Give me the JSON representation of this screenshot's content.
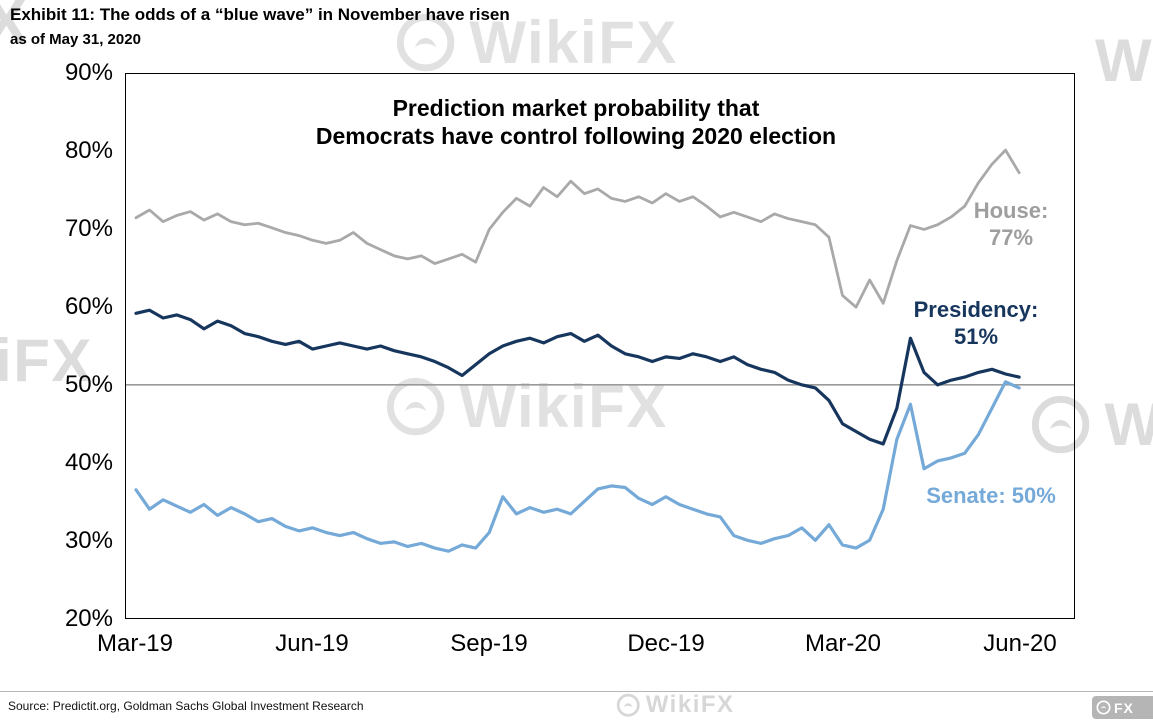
{
  "exhibit": {
    "title": "Exhibit 11: The odds of a “blue wave” in November have risen",
    "subtitle": "as of May 31, 2020",
    "source": "Source: Predictit.org, Goldman Sachs Global Investment Research"
  },
  "watermark": {
    "text": "WikiFX",
    "fragment_w": "W",
    "fragment_x": "X",
    "fragment_fx": "FX"
  },
  "colors": {
    "house": "#a9a9a9",
    "presidency": "#17365d",
    "senate": "#74a9d8",
    "fifty_line": "#9a9a9a",
    "frame": "#000000"
  },
  "chart_data": {
    "type": "line",
    "title_line1": "Prediction market probability that",
    "title_line2": "Democrats have control following  2020 election",
    "x_tick_labels": [
      "Mar-19",
      "Jun-19",
      "Sep-19",
      "Dec-19",
      "Mar-20",
      "Jun-20"
    ],
    "y_tick_labels": [
      "90%",
      "80%",
      "70%",
      "60%",
      "50%",
      "40%",
      "30%",
      "20%"
    ],
    "ylim": [
      20,
      90
    ],
    "x_range_months": [
      0,
      15
    ],
    "reference_line_y": 50,
    "grid": "off",
    "legend_position": "inline-annotations",
    "annotations": {
      "house_line1": "House:",
      "house_line2": "77%",
      "presidency_line1": "Presidency:",
      "presidency_line2": "51%",
      "senate": "Senate: 50%"
    },
    "series": [
      {
        "name": "House",
        "final_value": 77,
        "color": "#a9a9a9",
        "width": 2.8,
        "values": [
          71.5,
          72.5,
          71.0,
          71.8,
          72.3,
          71.2,
          72.0,
          71.0,
          70.6,
          70.8,
          70.2,
          69.6,
          69.2,
          68.6,
          68.2,
          68.6,
          69.6,
          68.2,
          67.4,
          66.6,
          66.2,
          66.6,
          65.6,
          66.2,
          66.8,
          65.8,
          70.0,
          72.2,
          74.0,
          73.0,
          75.4,
          74.2,
          76.2,
          74.6,
          75.2,
          74.0,
          73.6,
          74.2,
          73.4,
          74.6,
          73.6,
          74.2,
          73.0,
          71.6,
          72.2,
          71.6,
          71.0,
          72.0,
          71.4,
          71.0,
          70.6,
          69.0,
          61.5,
          60.0,
          63.5,
          60.5,
          66.0,
          70.5,
          70.0,
          70.6,
          71.6,
          73.0,
          76.0,
          78.4,
          80.2,
          77.3
        ]
      },
      {
        "name": "Senate",
        "final_value": 50,
        "color": "#74a9d8",
        "width": 3.2,
        "values": [
          36.5,
          34.0,
          35.2,
          34.4,
          33.6,
          34.6,
          33.2,
          34.2,
          33.4,
          32.4,
          32.8,
          31.8,
          31.2,
          31.6,
          31.0,
          30.6,
          31.0,
          30.2,
          29.6,
          29.8,
          29.2,
          29.6,
          29.0,
          28.6,
          29.4,
          29.0,
          31.0,
          35.6,
          33.4,
          34.2,
          33.6,
          34.0,
          33.4,
          35.0,
          36.6,
          37.0,
          36.8,
          35.4,
          34.6,
          35.6,
          34.6,
          34.0,
          33.4,
          33.0,
          30.6,
          30.0,
          29.6,
          30.2,
          30.6,
          31.6,
          30.0,
          32.0,
          29.4,
          29.0,
          30.0,
          34.0,
          43.0,
          47.5,
          39.2,
          40.2,
          40.6,
          41.2,
          43.6,
          47.0,
          50.4,
          49.6
        ]
      },
      {
        "name": "Presidency",
        "final_value": 51,
        "color": "#17365d",
        "width": 3.2,
        "values": [
          59.2,
          59.6,
          58.6,
          59.0,
          58.4,
          57.2,
          58.2,
          57.6,
          56.6,
          56.2,
          55.6,
          55.2,
          55.6,
          54.6,
          55.0,
          55.4,
          55.0,
          54.6,
          55.0,
          54.4,
          54.0,
          53.6,
          53.0,
          52.2,
          51.2,
          52.6,
          54.0,
          55.0,
          55.6,
          56.0,
          55.4,
          56.2,
          56.6,
          55.6,
          56.4,
          55.0,
          54.0,
          53.6,
          53.0,
          53.6,
          53.4,
          54.0,
          53.6,
          53.0,
          53.6,
          52.6,
          52.0,
          51.6,
          50.6,
          50.0,
          49.6,
          48.0,
          45.0,
          44.0,
          43.0,
          42.4,
          47.0,
          56.0,
          51.6,
          50.0,
          50.6,
          51.0,
          51.6,
          52.0,
          51.4,
          51.0
        ]
      }
    ]
  }
}
